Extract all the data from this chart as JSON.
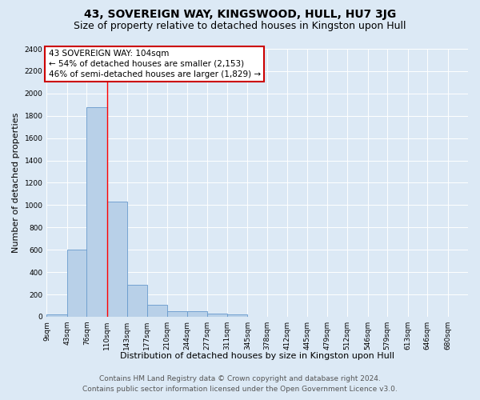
{
  "title": "43, SOVEREIGN WAY, KINGSWOOD, HULL, HU7 3JG",
  "subtitle": "Size of property relative to detached houses in Kingston upon Hull",
  "xlabel": "Distribution of detached houses by size in Kingston upon Hull",
  "ylabel": "Number of detached properties",
  "footer_line1": "Contains HM Land Registry data © Crown copyright and database right 2024.",
  "footer_line2": "Contains public sector information licensed under the Open Government Licence v3.0.",
  "bin_edges": [
    9,
    43,
    76,
    110,
    143,
    177,
    210,
    244,
    277,
    311,
    345,
    378,
    412,
    445,
    479,
    512,
    546,
    579,
    613,
    646,
    680
  ],
  "bar_heights": [
    20,
    600,
    1880,
    1030,
    290,
    110,
    50,
    50,
    30,
    20,
    0,
    0,
    0,
    0,
    0,
    0,
    0,
    0,
    0,
    0
  ],
  "bar_color": "#b8d0e8",
  "bar_edge_color": "#6699cc",
  "red_line_x": 110,
  "annotation_line1": "43 SOVEREIGN WAY: 104sqm",
  "annotation_line2": "← 54% of detached houses are smaller (2,153)",
  "annotation_line3": "46% of semi-detached houses are larger (1,829) →",
  "annotation_box_color": "#ffffff",
  "annotation_box_edge_color": "#cc0000",
  "ylim": [
    0,
    2400
  ],
  "yticks": [
    0,
    200,
    400,
    600,
    800,
    1000,
    1200,
    1400,
    1600,
    1800,
    2000,
    2200,
    2400
  ],
  "background_color": "#dce9f5",
  "grid_color": "#ffffff",
  "title_fontsize": 10,
  "subtitle_fontsize": 9,
  "tick_label_fontsize": 6.5,
  "ylabel_fontsize": 8,
  "xlabel_fontsize": 8,
  "annotation_fontsize": 7.5,
  "footer_fontsize": 6.5
}
